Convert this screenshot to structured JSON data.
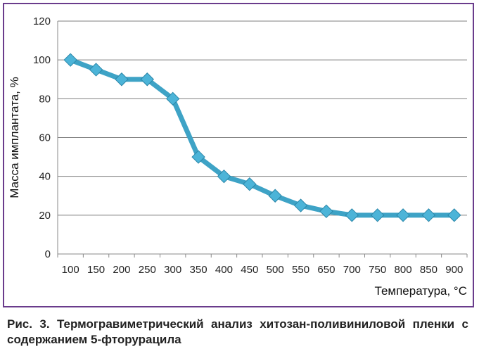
{
  "chart_data": {
    "type": "line",
    "categories": [
      "100",
      "150",
      "200",
      "250",
      "300",
      "350",
      "400",
      "450",
      "500",
      "550",
      "650",
      "700",
      "750",
      "800",
      "850",
      "900"
    ],
    "series": [
      {
        "values": [
          100,
          95,
          90,
          90,
          80,
          50,
          40,
          36,
          30,
          25,
          22,
          20,
          20,
          20,
          20,
          20
        ]
      }
    ],
    "xlabel": "Температура, °С",
    "ylabel": "Масса имплантата, %",
    "ylim": [
      0,
      120
    ],
    "yticks": [
      "0",
      "20",
      "40",
      "60",
      "80",
      "100",
      "120"
    ],
    "grid": true,
    "line_color": "#3ea3c6",
    "marker_color": "#4cb4d8",
    "marker_shape": "diamond"
  },
  "caption": "Рис. 3. Термогравиметрический анализ хитозан-поливиниловой пленки с содержанием 5-фторурацила",
  "frame_color": "#6a3c8c"
}
